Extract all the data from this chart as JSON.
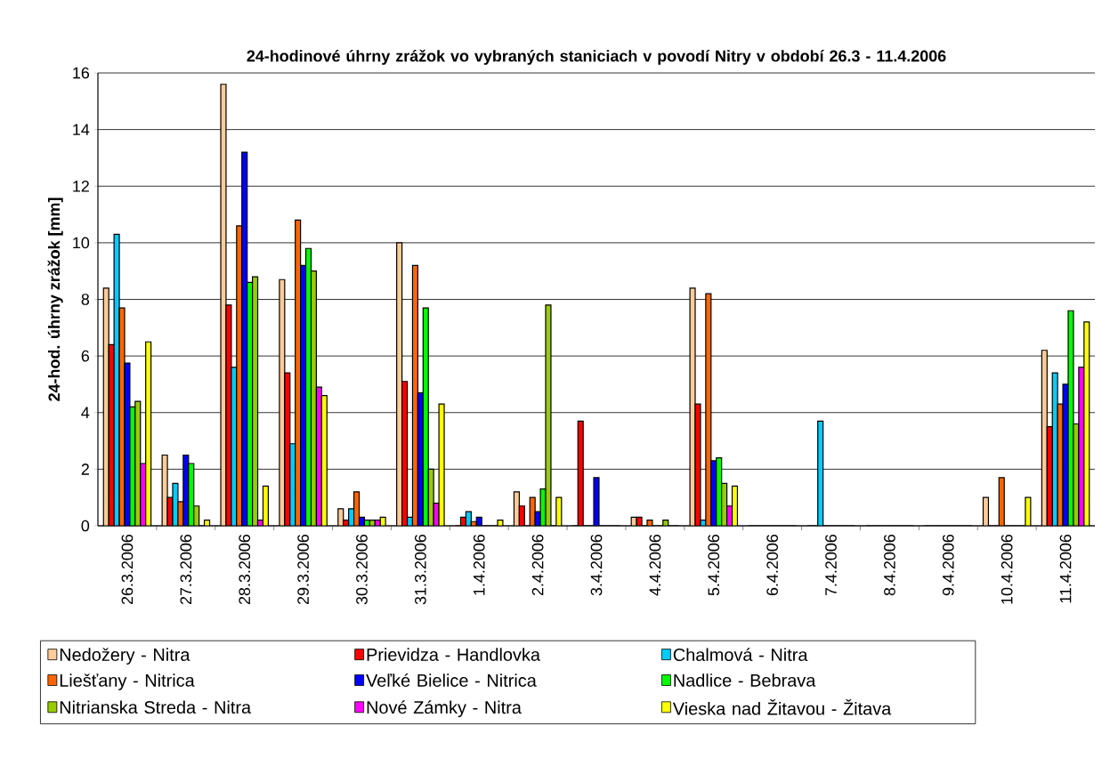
{
  "chart_data": {
    "type": "bar",
    "title": "24-hodinové úhrny zrážok vo vybraných staniciach v povodí Nitry v období 26.3 - 11.4.2006",
    "ylabel": "24-hod. úhrny zrážok [mm]",
    "categories": [
      "26.3.2006",
      "27.3.2006",
      "28.3.2006",
      "29.3.2006",
      "30.3.2006",
      "31.3.2006",
      "1.4.2006",
      "2.4.2006",
      "3.4.2006",
      "4.4.2006",
      "5.4.2006",
      "6.4.2006",
      "7.4.2006",
      "8.4.2006",
      "9.4.2006",
      "10.4.2006",
      "11.4.2006"
    ],
    "series": [
      {
        "name": "Nedožery - Nitra",
        "color": "#ffcc99",
        "values": [
          8.4,
          2.5,
          15.6,
          8.7,
          0.6,
          10.0,
          0,
          1.2,
          0,
          0.3,
          8.4,
          0,
          0,
          0,
          0,
          1.0,
          6.2
        ]
      },
      {
        "name": "Prievidza - Handlovka",
        "color": "#ff0000",
        "values": [
          6.4,
          1.0,
          7.8,
          5.4,
          0.2,
          5.1,
          0.3,
          0.7,
          3.7,
          0.3,
          4.3,
          0,
          0,
          0,
          0,
          0,
          3.5
        ]
      },
      {
        "name": "Chalmová - Nitra",
        "color": "#00ccff",
        "values": [
          10.3,
          1.5,
          5.6,
          2.9,
          0.6,
          0.3,
          0.5,
          0,
          0,
          0,
          0.2,
          0,
          3.7,
          0,
          0,
          0,
          5.4
        ]
      },
      {
        "name": "Liešťany - Nitrica",
        "color": "#ff6600",
        "values": [
          7.7,
          0.85,
          10.6,
          10.8,
          1.2,
          9.2,
          0.15,
          1.0,
          0,
          0.2,
          8.2,
          0,
          0,
          0,
          0,
          1.7,
          4.3
        ]
      },
      {
        "name": "Veľké Bielice - Nitrica",
        "color": "#0000ff",
        "values": [
          5.75,
          2.5,
          13.2,
          9.2,
          0.3,
          4.7,
          0.3,
          0.5,
          1.7,
          0,
          2.3,
          0,
          0,
          0,
          0,
          0,
          5.0
        ]
      },
      {
        "name": "Nadlice - Bebrava",
        "color": "#00ff00",
        "values": [
          4.2,
          2.2,
          8.6,
          9.8,
          0.2,
          7.7,
          0,
          1.3,
          0,
          0,
          2.4,
          0,
          0,
          0,
          0,
          0,
          7.6
        ]
      },
      {
        "name": "Nitrianska Streda - Nitra",
        "color": "#99cc00",
        "values": [
          4.4,
          0.7,
          8.8,
          9.0,
          0.2,
          2.0,
          0,
          7.8,
          0,
          0.2,
          1.5,
          0,
          0,
          0,
          0,
          0,
          3.6
        ]
      },
      {
        "name": "Nové Zámky - Nitra",
        "color": "#ff00ff",
        "values": [
          2.2,
          0,
          0.2,
          4.9,
          0.2,
          0.8,
          0,
          0,
          0,
          0,
          0.7,
          0,
          0,
          0,
          0,
          0,
          5.6
        ]
      },
      {
        "name": "Vieska nad Žitavou - Žitava",
        "color": "#ffff00",
        "values": [
          6.5,
          0.2,
          1.4,
          4.6,
          0.3,
          4.3,
          0.2,
          1.0,
          0,
          0,
          1.4,
          0,
          0,
          0,
          0,
          1.0,
          7.2
        ]
      }
    ],
    "ylim": [
      0,
      16
    ],
    "yticks": [
      0,
      2,
      4,
      6,
      8,
      10,
      12,
      14,
      16
    ],
    "grid": "y",
    "legend": "bottom"
  }
}
